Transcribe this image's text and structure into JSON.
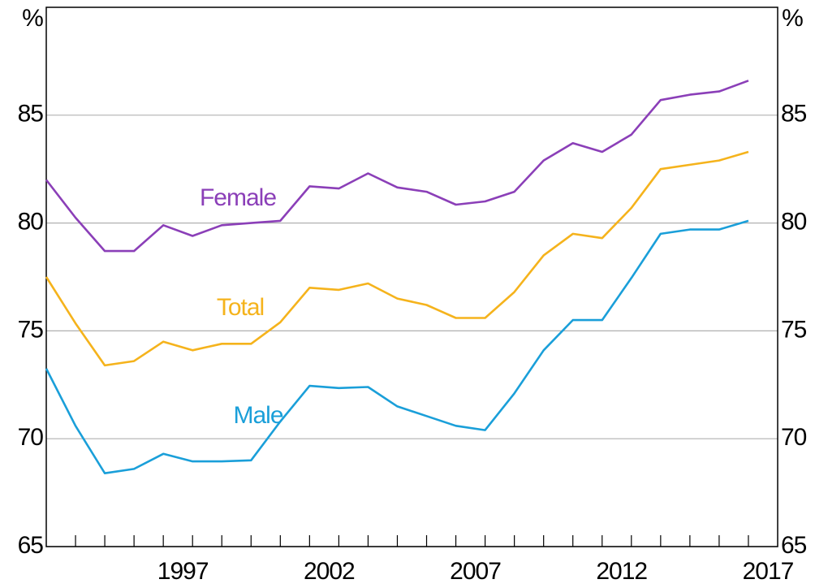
{
  "chart_data": {
    "type": "line",
    "y_unit": "%",
    "x": [
      1993,
      1994,
      1995,
      1996,
      1997,
      1998,
      1999,
      2000,
      2001,
      2002,
      2003,
      2004,
      2005,
      2006,
      2007,
      2008,
      2009,
      2010,
      2011,
      2012,
      2013,
      2014,
      2015,
      2016,
      2017
    ],
    "series": [
      {
        "name": "Female",
        "color": "#8b3fb8",
        "values": [
          82.0,
          80.25,
          78.7,
          78.7,
          79.9,
          79.4,
          79.9,
          80.0,
          80.1,
          81.7,
          81.6,
          82.3,
          81.65,
          81.45,
          80.85,
          81.0,
          81.45,
          82.9,
          83.7,
          83.3,
          84.1,
          85.7,
          85.95,
          86.1,
          86.6
        ]
      },
      {
        "name": "Total",
        "color": "#f5b31c",
        "values": [
          77.5,
          75.35,
          73.4,
          73.6,
          74.5,
          74.1,
          74.4,
          74.4,
          75.4,
          77.0,
          76.9,
          77.2,
          76.5,
          76.2,
          75.6,
          75.6,
          76.8,
          78.5,
          79.5,
          79.3,
          80.7,
          82.5,
          82.7,
          82.9,
          83.3
        ]
      },
      {
        "name": "Male",
        "color": "#1a9fd9",
        "values": [
          73.25,
          70.6,
          68.4,
          68.6,
          69.3,
          68.95,
          68.95,
          69.0,
          70.8,
          72.45,
          72.35,
          72.4,
          71.5,
          71.05,
          70.6,
          70.4,
          72.1,
          74.1,
          75.5,
          75.5,
          77.45,
          79.5,
          79.7,
          79.7,
          80.1
        ]
      }
    ],
    "xlim": [
      1993,
      2018
    ],
    "xticks": [
      1997,
      2002,
      2007,
      2012,
      2017
    ],
    "xminorticks": [
      1994,
      1995,
      1996,
      1997,
      1998,
      1999,
      2000,
      2001,
      2002,
      2003,
      2004,
      2005,
      2006,
      2007,
      2008,
      2009,
      2010,
      2011,
      2012,
      2013,
      2014,
      2015,
      2016,
      2017
    ],
    "ylim": [
      65,
      90
    ],
    "yticks": [
      65,
      70,
      75,
      80,
      85
    ],
    "grid": true
  }
}
